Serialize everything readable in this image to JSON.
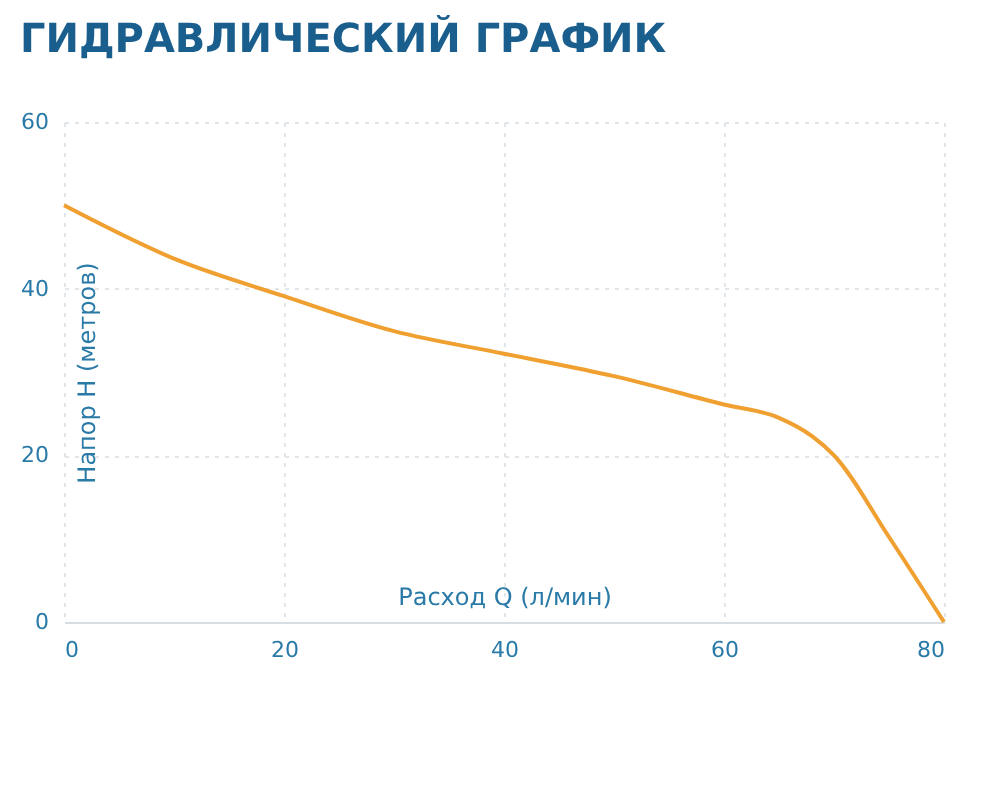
{
  "chart_data": {
    "type": "line",
    "title": "ГИДРАВЛИЧЕСКИЙ ГРАФИК",
    "xlabel": "Расход Q (л/мин)",
    "ylabel": "Напор H (метров)",
    "x": [
      0,
      10,
      20,
      30,
      40,
      50,
      60,
      65,
      68,
      70,
      75,
      80
    ],
    "series": [
      {
        "color": "#f0a030",
        "values": [
          50,
          43.6,
          39.1,
          34.9,
          32.2,
          29.5,
          26.1,
          24.5,
          22.3,
          20,
          10.2,
          0
        ]
      }
    ],
    "xlim": [
      0,
      80
    ],
    "ylim": [
      0,
      60
    ],
    "xticks": [
      0,
      20,
      40,
      60,
      80
    ],
    "yticks": [
      0,
      20,
      40,
      60
    ],
    "grid": true,
    "legend": false,
    "marker": "none",
    "line_style": "solid"
  }
}
